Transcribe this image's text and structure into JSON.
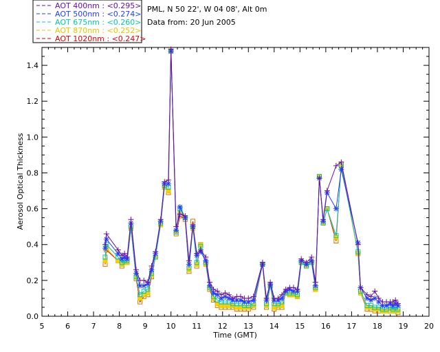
{
  "header": {
    "location": "PML, N 50 22', W 04 08', Alt 0m",
    "date_line": "Data from: 20 Jun 2005"
  },
  "legend": {
    "items": [
      {
        "label": "AOT  400nm : <0.295>",
        "color": "#6a0dad"
      },
      {
        "label": "AOT  500nm : <0.274>",
        "color": "#1f3fff"
      },
      {
        "label": "AOT  675nm : <0.260>",
        "color": "#00c8b0"
      },
      {
        "label": "AOT  870nm : <0.252>",
        "color": "#e8c400"
      },
      {
        "label": "AOT 1020nm : <0.247>",
        "color": "#e00000"
      }
    ]
  },
  "chart_data": {
    "type": "line",
    "xlabel": "Time (GMT)",
    "ylabel": "Aerosol Optical Thickness",
    "xlim": [
      5,
      20
    ],
    "ylim": [
      0.0,
      1.5
    ],
    "xticks": [
      "5",
      "6",
      "7",
      "8",
      "9",
      "10",
      "11",
      "12",
      "13",
      "14",
      "15",
      "16",
      "17",
      "18",
      "19",
      "20"
    ],
    "yticks": [
      "0.0",
      "0.2",
      "0.4",
      "0.6",
      "0.8",
      "1.0",
      "1.2",
      "1.4"
    ],
    "grid": false,
    "x": [
      7.45,
      7.5,
      7.95,
      8.1,
      8.2,
      8.3,
      8.45,
      8.65,
      8.8,
      8.95,
      9.1,
      9.25,
      9.4,
      9.6,
      9.75,
      9.9,
      10.0,
      10.2,
      10.35,
      10.55,
      10.7,
      10.85,
      11.0,
      11.15,
      11.35,
      11.5,
      11.65,
      11.8,
      11.95,
      12.1,
      12.25,
      12.4,
      12.55,
      12.7,
      12.85,
      13.0,
      13.2,
      13.55,
      13.7,
      13.85,
      14.0,
      14.15,
      14.3,
      14.45,
      14.6,
      14.75,
      14.9,
      15.05,
      15.25,
      15.45,
      15.6,
      15.75,
      15.9,
      16.05,
      16.4,
      16.6,
      17.25,
      17.35,
      17.6,
      17.75,
      17.9,
      18.05,
      18.2,
      18.35,
      18.5,
      18.6,
      18.7,
      18.8
    ],
    "series": [
      {
        "name": "AOT  400nm : <0.295>",
        "marker": "plus",
        "values": [
          0.4,
          0.46,
          0.37,
          0.34,
          0.35,
          0.33,
          0.54,
          0.26,
          0.2,
          0.2,
          0.19,
          0.28,
          0.36,
          0.54,
          0.75,
          0.76,
          1.49,
          0.5,
          0.57,
          0.56,
          0.31,
          0.51,
          0.35,
          0.37,
          0.33,
          0.19,
          0.15,
          0.14,
          0.12,
          0.13,
          0.12,
          0.1,
          0.11,
          0.11,
          0.1,
          0.1,
          0.11,
          0.3,
          0.1,
          0.19,
          0.1,
          0.1,
          0.12,
          0.15,
          0.16,
          0.16,
          0.15,
          0.32,
          0.3,
          0.33,
          0.19,
          0.77,
          0.54,
          0.7,
          0.84,
          0.86,
          0.4,
          0.16,
          0.12,
          0.11,
          0.14,
          0.1,
          0.08,
          0.08,
          0.08,
          0.08,
          0.09,
          0.07
        ]
      },
      {
        "name": "AOT  500nm : <0.274>",
        "marker": "asterisk",
        "values": [
          0.38,
          0.43,
          0.35,
          0.32,
          0.33,
          0.32,
          0.52,
          0.24,
          0.17,
          0.17,
          0.18,
          0.26,
          0.35,
          0.53,
          0.74,
          0.74,
          1.48,
          0.48,
          0.61,
          0.55,
          0.29,
          0.5,
          0.34,
          0.36,
          0.31,
          0.17,
          0.13,
          0.12,
          0.1,
          0.11,
          0.1,
          0.09,
          0.09,
          0.09,
          0.08,
          0.08,
          0.09,
          0.29,
          0.09,
          0.18,
          0.09,
          0.09,
          0.1,
          0.14,
          0.15,
          0.14,
          0.14,
          0.31,
          0.29,
          0.31,
          0.17,
          0.77,
          0.53,
          0.69,
          0.6,
          0.82,
          0.41,
          0.16,
          0.1,
          0.09,
          0.1,
          0.08,
          0.06,
          0.06,
          0.07,
          0.06,
          0.07,
          0.06
        ]
      },
      {
        "name": "AOT  675nm : <0.260>",
        "marker": "square",
        "values": [
          0.33,
          0.4,
          0.33,
          0.3,
          0.31,
          0.31,
          0.5,
          0.22,
          0.12,
          0.14,
          0.15,
          0.24,
          0.33,
          0.52,
          0.73,
          0.72,
          1.48,
          0.47,
          0.6,
          0.55,
          0.27,
          0.5,
          0.3,
          0.39,
          0.3,
          0.16,
          0.11,
          0.09,
          0.08,
          0.08,
          0.08,
          0.07,
          0.07,
          0.07,
          0.06,
          0.06,
          0.07,
          0.29,
          0.07,
          0.17,
          0.07,
          0.07,
          0.08,
          0.13,
          0.13,
          0.13,
          0.12,
          0.3,
          0.28,
          0.3,
          0.16,
          0.78,
          0.52,
          0.6,
          0.45,
          0.84,
          0.36,
          0.14,
          0.06,
          0.06,
          0.05,
          0.05,
          0.04,
          0.04,
          0.05,
          0.04,
          0.05,
          0.04
        ]
      },
      {
        "name": "AOT  870nm : <0.252>",
        "marker": "square",
        "values": [
          0.31,
          0.38,
          0.31,
          0.29,
          0.3,
          0.3,
          0.49,
          0.22,
          0.1,
          0.12,
          0.13,
          0.23,
          0.33,
          0.51,
          0.72,
          0.7,
          1.48,
          0.47,
          0.58,
          0.55,
          0.26,
          0.49,
          0.29,
          0.4,
          0.29,
          0.16,
          0.1,
          0.07,
          0.06,
          0.06,
          0.06,
          0.06,
          0.05,
          0.05,
          0.05,
          0.05,
          0.06,
          0.29,
          0.06,
          0.17,
          0.05,
          0.06,
          0.06,
          0.13,
          0.12,
          0.12,
          0.11,
          0.3,
          0.28,
          0.3,
          0.15,
          0.78,
          0.52,
          0.6,
          0.44,
          0.84,
          0.35,
          0.13,
          0.05,
          0.05,
          0.04,
          0.04,
          0.03,
          0.03,
          0.04,
          0.03,
          0.04,
          0.03
        ]
      },
      {
        "name": "AOT 1020nm : <0.247>",
        "marker": "square",
        "values": [
          0.29,
          0.37,
          0.31,
          0.28,
          0.3,
          0.3,
          0.49,
          0.21,
          0.08,
          0.11,
          0.12,
          0.22,
          0.33,
          0.51,
          0.72,
          0.69,
          1.48,
          0.46,
          0.56,
          0.54,
          0.25,
          0.53,
          0.28,
          0.4,
          0.29,
          0.15,
          0.09,
          0.06,
          0.05,
          0.05,
          0.05,
          0.05,
          0.04,
          0.04,
          0.04,
          0.04,
          0.05,
          0.29,
          0.05,
          0.17,
          0.04,
          0.05,
          0.05,
          0.13,
          0.12,
          0.12,
          0.11,
          0.3,
          0.28,
          0.3,
          0.15,
          0.78,
          0.52,
          0.6,
          0.42,
          0.85,
          0.35,
          0.13,
          0.04,
          0.04,
          0.03,
          0.03,
          0.03,
          0.03,
          0.03,
          0.03,
          0.03,
          0.02
        ]
      }
    ]
  }
}
